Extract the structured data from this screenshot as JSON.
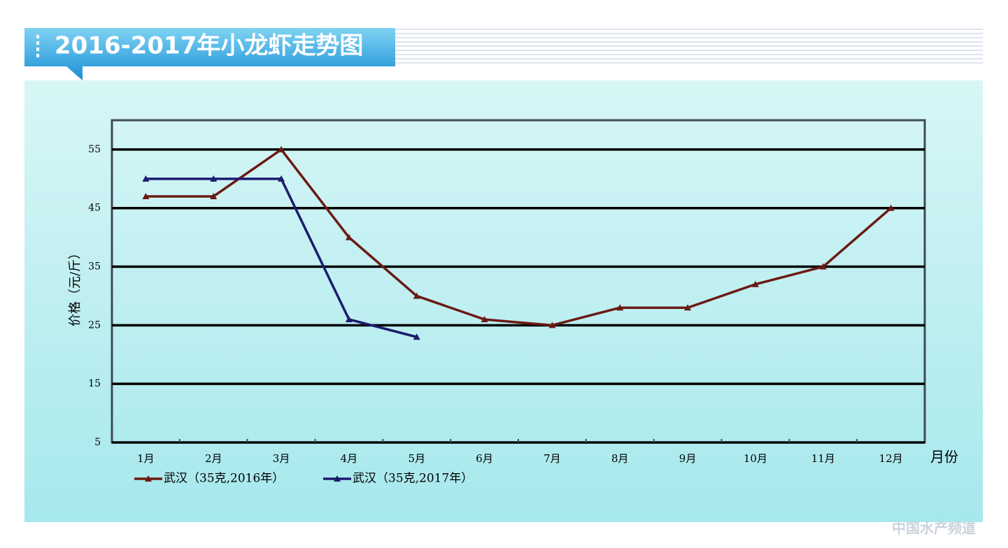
{
  "chart_data": {
    "type": "line",
    "title": "2016-2017年小龙虾走势图",
    "y_label": "价格（元/斤）",
    "x_label": "月份",
    "categories": [
      "1月",
      "2月",
      "3月",
      "4月",
      "5月",
      "6月",
      "7月",
      "8月",
      "9月",
      "10月",
      "11月",
      "12月"
    ],
    "series": [
      {
        "name": "武汉（35克,2016年）",
        "color": "#6b1a14",
        "values": [
          47,
          47,
          55,
          40,
          30,
          26,
          25,
          28,
          28,
          32,
          35,
          45
        ]
      },
      {
        "name": "武汉（35克,2017年）",
        "color": "#1c1c6e",
        "values": [
          50,
          50,
          50,
          26,
          23,
          null,
          null,
          null,
          null,
          null,
          null,
          null
        ]
      }
    ],
    "ylim": [
      5,
      60
    ],
    "yticks": [
      5,
      15,
      25,
      35,
      45,
      55
    ],
    "grid": true,
    "watermark": "中国水产频道"
  }
}
